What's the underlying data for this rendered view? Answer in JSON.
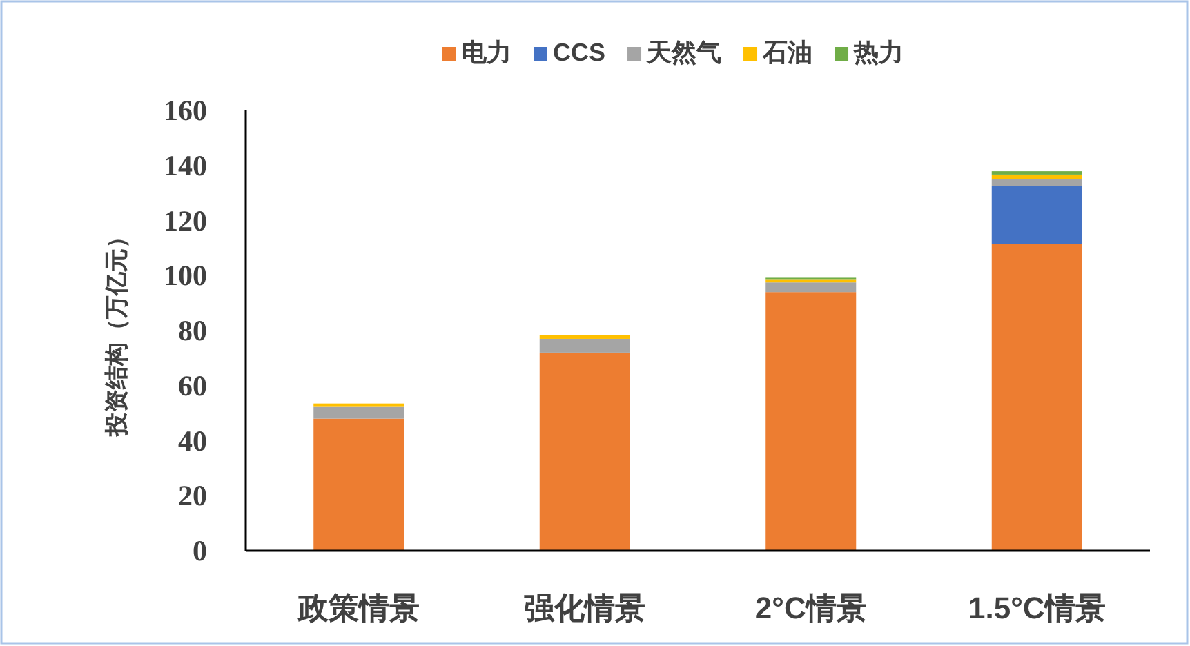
{
  "chart_data": {
    "type": "bar",
    "stacked": true,
    "ylabel": "投资结构（万亿元）",
    "categories": [
      "政策情景",
      "强化情景",
      "2°C情景",
      "1.5°C情景"
    ],
    "series": [
      {
        "name": "电力",
        "color": "#ed7d31",
        "values": [
          48,
          72,
          94,
          111.5
        ]
      },
      {
        "name": "CCS",
        "color": "#4472c4",
        "values": [
          0,
          0,
          0,
          21
        ]
      },
      {
        "name": "天然气",
        "color": "#a5a5a5",
        "values": [
          4.5,
          5,
          3.5,
          2.5
        ]
      },
      {
        "name": "石油",
        "color": "#ffc000",
        "values": [
          1,
          1.3,
          1.2,
          1.7
        ]
      },
      {
        "name": "热力",
        "color": "#70ad47",
        "values": [
          0,
          0,
          0.5,
          1.2
        ]
      }
    ],
    "ylim": [
      0,
      160
    ],
    "yticks": [
      0,
      20,
      40,
      60,
      80,
      100,
      120,
      140,
      160
    ],
    "grid": false,
    "legend": "top"
  }
}
